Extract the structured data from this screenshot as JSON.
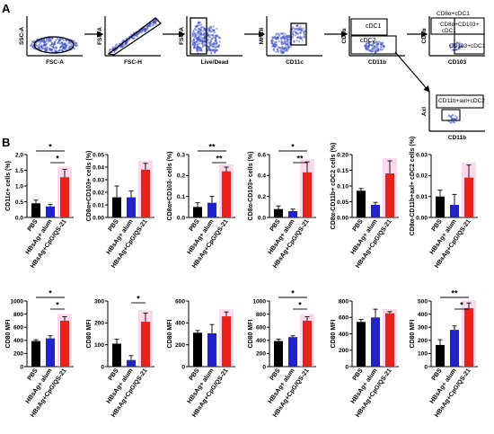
{
  "panel_a": {
    "letter": "A",
    "plots": [
      {
        "x_label": "FSC-A",
        "y_label": "SSC-A",
        "gate_labels": []
      },
      {
        "x_label": "FSC-H",
        "y_label": "FSC-A",
        "gate_labels": []
      },
      {
        "x_label": "Live/Dead",
        "y_label": "FSC-A",
        "gate_labels": []
      },
      {
        "x_label": "CD11c",
        "y_label": "MHCII",
        "gate_labels": []
      },
      {
        "x_label": "CD11b",
        "y_label": "CD8α",
        "gate_labels": [
          "cDC1",
          "cDC2"
        ]
      },
      {
        "x_label": "CD103",
        "y_label": "CD8α",
        "gate_labels": [
          "CD8α+cDC1",
          "CD8α+CD103+ cDC1",
          "CD103+cDC1"
        ]
      },
      {
        "x_label": "CD11b",
        "y_label": "Axl",
        "gate_labels": [
          "CD11b+axl+cDC2"
        ]
      }
    ]
  },
  "panel_b": {
    "letter": "B"
  },
  "colors": {
    "PBS": "#000000",
    "alum": "#1f23c8",
    "cpg": "#e8221b",
    "highlight": "#f7b8dc",
    "dots": "#2e3a9c"
  },
  "chart_data": [
    {
      "type": "bar",
      "ylabel": "CD11c+ cells (%)",
      "ylim": [
        0,
        2.0
      ],
      "yticks": [
        "0.0",
        "0.5",
        "1.0",
        "1.5",
        "2.0"
      ],
      "categories": [
        "PBS",
        "HBsAg+ alum",
        "HBsAg+CpG/QS-21"
      ],
      "values": [
        0.45,
        0.35,
        1.28
      ],
      "errors": [
        0.1,
        0.07,
        0.25
      ],
      "sig": [
        {
          "from": 0,
          "to": 2,
          "label": "*"
        },
        {
          "from": 1,
          "to": 2,
          "label": "*"
        }
      ]
    },
    {
      "type": "bar",
      "ylabel": "CD8α+CD103+ cells (%)",
      "ylim": [
        0,
        0.05
      ],
      "yticks": [
        "0.00",
        "0.01",
        "0.02",
        "0.03",
        "0.04",
        "0.05"
      ],
      "categories": [
        "PBS",
        "HBsAg+ alum",
        "HBsAg+CpG/QS-21"
      ],
      "values": [
        0.016,
        0.016,
        0.038
      ],
      "errors": [
        0.009,
        0.005,
        0.005
      ],
      "sig": []
    },
    {
      "type": "bar",
      "ylabel": "CD8α+CD103- cells (%)",
      "ylim": [
        0,
        0.3
      ],
      "yticks": [
        "0.0",
        "0.1",
        "0.2",
        "0.3"
      ],
      "categories": [
        "PBS",
        "HBsAg+ alum",
        "HBsAg+CpG/QS-21"
      ],
      "values": [
        0.05,
        0.07,
        0.22
      ],
      "errors": [
        0.02,
        0.03,
        0.02
      ],
      "sig": [
        {
          "from": 0,
          "to": 2,
          "label": "**"
        },
        {
          "from": 1,
          "to": 2,
          "label": "**"
        }
      ]
    },
    {
      "type": "bar",
      "ylabel": "CD8α-CD103+ cells (%)",
      "ylim": [
        0,
        0.6
      ],
      "yticks": [
        "0.0",
        "0.2",
        "0.4",
        "0.6"
      ],
      "categories": [
        "PBS",
        "HBsAg+ alum",
        "HBsAg+CpG/QS-21"
      ],
      "values": [
        0.08,
        0.06,
        0.43
      ],
      "errors": [
        0.03,
        0.02,
        0.1
      ],
      "sig": [
        {
          "from": 0,
          "to": 2,
          "label": "*"
        },
        {
          "from": 1,
          "to": 2,
          "label": "**"
        }
      ]
    },
    {
      "type": "bar",
      "ylabel": "CD8α-CD11b+ cDC2 cells (%)",
      "ylim": [
        0,
        0.2
      ],
      "yticks": [
        "0.00",
        "0.05",
        "0.10",
        "0.15",
        "0.20"
      ],
      "categories": [
        "PBS",
        "HBsAg+ alum",
        "HBsAg+CpG/QS-21"
      ],
      "values": [
        0.085,
        0.04,
        0.14
      ],
      "errors": [
        0.007,
        0.008,
        0.04
      ],
      "sig": []
    },
    {
      "type": "bar",
      "ylabel": "CD8α-CD11b+axl+ cDC2 cells (%)",
      "ylim": [
        0,
        0.03
      ],
      "yticks": [
        "0.00",
        "0.01",
        "0.02",
        "0.03"
      ],
      "categories": [
        "PBS",
        "HBsAg+ alum",
        "HBsAg+CpG/QS-21"
      ],
      "values": [
        0.01,
        0.006,
        0.019
      ],
      "errors": [
        0.003,
        0.005,
        0.006
      ],
      "sig": []
    },
    {
      "type": "bar",
      "ylabel": "CD80 MFI",
      "ylim": [
        0,
        1000
      ],
      "yticks": [
        "0",
        "200",
        "400",
        "600",
        "800",
        "1000"
      ],
      "categories": [
        "PBS",
        "HBsAg+ alum",
        "HBsAg+CpG/QS-21"
      ],
      "values": [
        390,
        430,
        700
      ],
      "errors": [
        20,
        40,
        60
      ],
      "sig": [
        {
          "from": 0,
          "to": 2,
          "label": "*"
        },
        {
          "from": 1,
          "to": 2,
          "label": "*"
        }
      ]
    },
    {
      "type": "bar",
      "ylabel": "CD80 MFI",
      "ylim": [
        0,
        300
      ],
      "yticks": [
        "0",
        "100",
        "200",
        "300"
      ],
      "categories": [
        "PBS",
        "HBsAg+ alum",
        "HBsAg+CpG/QS-21"
      ],
      "values": [
        105,
        30,
        205
      ],
      "errors": [
        20,
        20,
        40
      ],
      "sig": [
        {
          "from": 1,
          "to": 2,
          "label": "*"
        }
      ]
    },
    {
      "type": "bar",
      "ylabel": "CD80 MFI",
      "ylim": [
        0,
        600
      ],
      "yticks": [
        "0",
        "200",
        "400",
        "600"
      ],
      "categories": [
        "PBS",
        "HBsAg+ alum",
        "HBsAg+CpG/QS-21"
      ],
      "values": [
        310,
        305,
        460
      ],
      "errors": [
        20,
        80,
        40
      ],
      "sig": []
    },
    {
      "type": "bar",
      "ylabel": "CD80 MFI",
      "ylim": [
        0,
        1000
      ],
      "yticks": [
        "0",
        "200",
        "400",
        "600",
        "800",
        "1000"
      ],
      "categories": [
        "PBS",
        "HBsAg+ alum",
        "HBsAg+CpG/QS-21"
      ],
      "values": [
        390,
        450,
        700
      ],
      "errors": [
        30,
        20,
        60
      ],
      "sig": [
        {
          "from": 0,
          "to": 2,
          "label": "*"
        },
        {
          "from": 1,
          "to": 2,
          "label": "*"
        }
      ]
    },
    {
      "type": "bar",
      "ylabel": "CD80 MFI",
      "ylim": [
        0,
        800
      ],
      "yticks": [
        "0",
        "200",
        "400",
        "600",
        "800"
      ],
      "categories": [
        "PBS",
        "HBsAg+ alum",
        "HBsAg+CpG/QS-21"
      ],
      "values": [
        545,
        600,
        650
      ],
      "errors": [
        30,
        100,
        20
      ],
      "sig": []
    },
    {
      "type": "bar",
      "ylabel": "CD80 MFI",
      "ylim": [
        0,
        500
      ],
      "yticks": [
        "0",
        "100",
        "200",
        "300",
        "400",
        "500"
      ],
      "categories": [
        "PBS",
        "HBsAg+ alum",
        "HBsAg+CpG/QS-21"
      ],
      "values": [
        165,
        280,
        445
      ],
      "errors": [
        40,
        30,
        40
      ],
      "sig": [
        {
          "from": 0,
          "to": 2,
          "label": "**"
        },
        {
          "from": 1,
          "to": 2,
          "label": "*"
        }
      ]
    }
  ]
}
